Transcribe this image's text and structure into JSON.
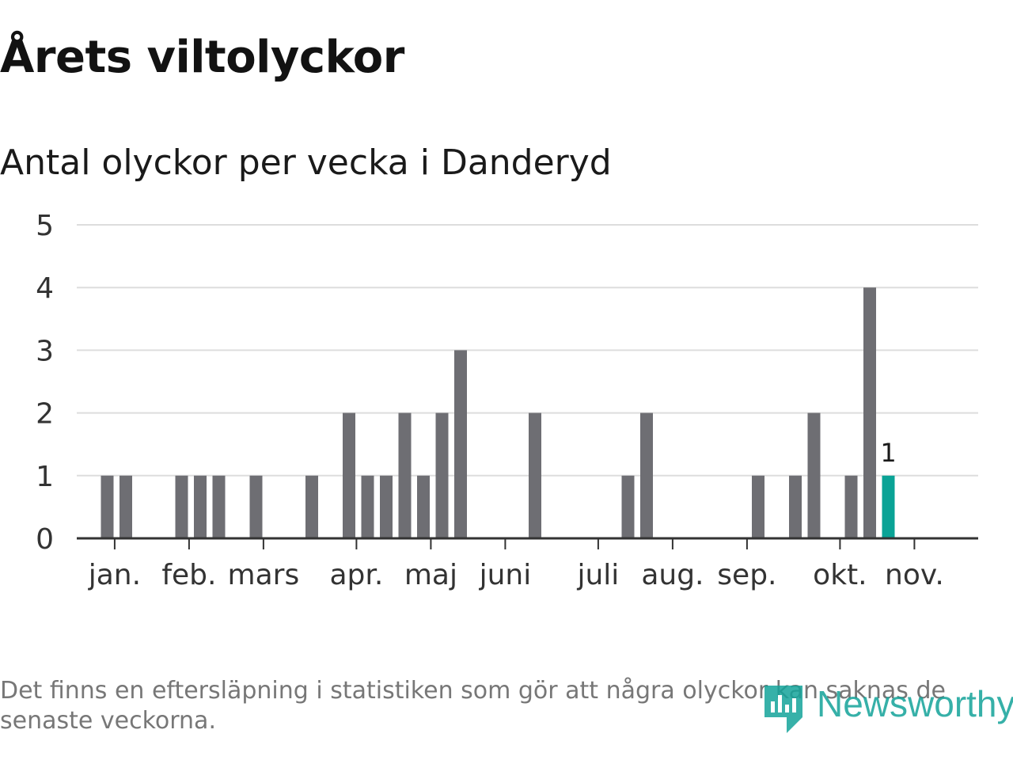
{
  "header": {
    "title": "Årets viltolyckor",
    "subtitle": "Antal olyckor per vecka i Danderyd"
  },
  "chart_data": {
    "type": "bar",
    "title": "Antal olyckor per vecka i Danderyd",
    "xlabel": "",
    "ylabel": "",
    "ylim": [
      0,
      5
    ],
    "yticks": [
      0,
      1,
      2,
      3,
      4,
      5
    ],
    "grid": true,
    "x_unit": "week",
    "bars": [
      {
        "week": 2,
        "value": 1
      },
      {
        "week": 3,
        "value": 1
      },
      {
        "week": 6,
        "value": 1
      },
      {
        "week": 7,
        "value": 1
      },
      {
        "week": 8,
        "value": 1
      },
      {
        "week": 10,
        "value": 1
      },
      {
        "week": 13,
        "value": 1
      },
      {
        "week": 15,
        "value": 2
      },
      {
        "week": 16,
        "value": 1
      },
      {
        "week": 17,
        "value": 1
      },
      {
        "week": 18,
        "value": 2
      },
      {
        "week": 19,
        "value": 1
      },
      {
        "week": 20,
        "value": 2
      },
      {
        "week": 21,
        "value": 3
      },
      {
        "week": 25,
        "value": 2
      },
      {
        "week": 30,
        "value": 1
      },
      {
        "week": 31,
        "value": 2
      },
      {
        "week": 37,
        "value": 1
      },
      {
        "week": 39,
        "value": 1
      },
      {
        "week": 40,
        "value": 2
      },
      {
        "week": 42,
        "value": 1
      },
      {
        "week": 43,
        "value": 4
      },
      {
        "week": 44,
        "value": 1,
        "highlight": true
      }
    ],
    "month_ticks": [
      {
        "label": "jan.",
        "week": 2.4
      },
      {
        "label": "feb.",
        "week": 6.4
      },
      {
        "label": "mars",
        "week": 10.4
      },
      {
        "label": "apr.",
        "week": 15.4
      },
      {
        "label": "maj",
        "week": 19.4
      },
      {
        "label": "juni",
        "week": 23.4
      },
      {
        "label": "juli",
        "week": 28.4
      },
      {
        "label": "aug.",
        "week": 32.4
      },
      {
        "label": "sep.",
        "week": 36.4
      },
      {
        "label": "okt.",
        "week": 41.4
      },
      {
        "label": "nov.",
        "week": 45.4
      }
    ],
    "highlight_label": "1",
    "colors": {
      "bar": "#6e6e73",
      "highlight": "#0aa396",
      "grid": "#dddddd",
      "axis": "#333333"
    }
  },
  "footnote": "Det finns en eftersläpning i statistiken som gör att några olyckor kan saknas de senaste veckorna.",
  "brand": {
    "name": "Newsworthy",
    "color": "#14a39a"
  }
}
